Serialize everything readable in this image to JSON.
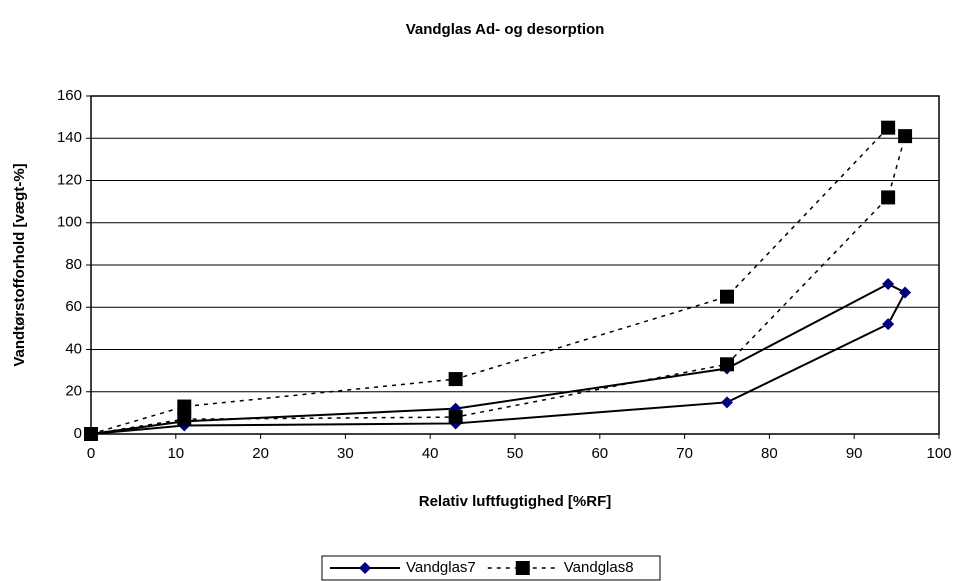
{
  "chart_data": {
    "type": "line",
    "title": "Vandglas Ad- og desorption",
    "xlabel": "Relativ luftfugtighed [%RF]",
    "ylabel": "Vandtørstofforhold [vægt-%]",
    "xlim": [
      0,
      100
    ],
    "xticks": [
      0,
      10,
      20,
      30,
      40,
      50,
      60,
      70,
      80,
      90,
      100
    ],
    "ylim": [
      0,
      160
    ],
    "yticks": [
      0,
      20,
      40,
      60,
      80,
      100,
      120,
      140,
      160
    ],
    "grid": true,
    "legend": "bottom",
    "series": [
      {
        "name": "Vandglas7",
        "color": "#000080",
        "line_color": "#000000",
        "marker": "diamond",
        "dashed": false,
        "x": [
          0,
          11,
          43,
          75,
          94,
          96,
          94,
          75,
          43,
          11,
          0
        ],
        "values": [
          0,
          6,
          12,
          31,
          71,
          67,
          52,
          15,
          5,
          4,
          0
        ]
      },
      {
        "name": "Vandglas8",
        "color": "#000000",
        "line_color": "#000000",
        "marker": "square",
        "dashed": true,
        "x": [
          0,
          11,
          43,
          75,
          94,
          96,
          94,
          75,
          43,
          11,
          0
        ],
        "values": [
          0,
          13,
          26,
          65,
          145,
          141,
          112,
          33,
          8,
          7,
          0
        ]
      }
    ]
  }
}
